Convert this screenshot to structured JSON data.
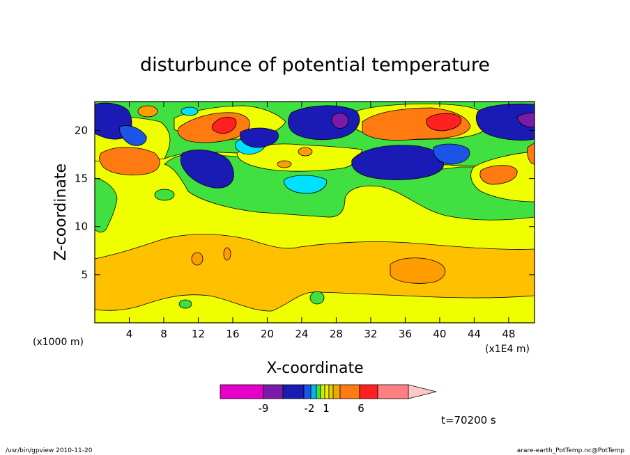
{
  "chart_data": {
    "type": "heatmap",
    "title": "disturbunce of potential temperature",
    "xlabel": "X-coordinate",
    "ylabel": "Z-coordinate",
    "x_unit_label": "(x1E4 m)",
    "y_unit_label": "(x1000 m)",
    "xlim": [
      0,
      51
    ],
    "ylim": [
      0,
      23
    ],
    "x_ticks": [
      4,
      8,
      12,
      16,
      20,
      24,
      28,
      32,
      36,
      40,
      44,
      48
    ],
    "y_ticks": [
      5,
      10,
      15,
      20
    ],
    "colorbar_ticks": [
      "-9",
      "-2",
      "1",
      "6"
    ],
    "colorbar_colors": [
      "#e400c8",
      "#7a1aa8",
      "#1a1ab4",
      "#1c54e8",
      "#00b4f0",
      "#40e040",
      "#c8f000",
      "#f0f000",
      "#f0d000",
      "#f0a800",
      "#ff7a10",
      "#ff2020",
      "#ff8080",
      "#ffc8c8"
    ],
    "time_label": "t=70200 s",
    "grid": false,
    "legend": "bottom-colorbar",
    "colors": {
      "background_field": "#f0ff00",
      "positive_weak": "#ffc000",
      "positive_strong": "#ff7a10",
      "positive_peak": "#ff2020",
      "negative_weak": "#40e040",
      "negative_mid": "#00e0ff",
      "negative_strong": "#1a1ab4",
      "negative_peak": "#7a1aa8"
    }
  },
  "footer": {
    "left": "/usr/bin/gpview   2010-11-20",
    "right": "arare-earth_PotTemp.nc@PotTemp"
  }
}
